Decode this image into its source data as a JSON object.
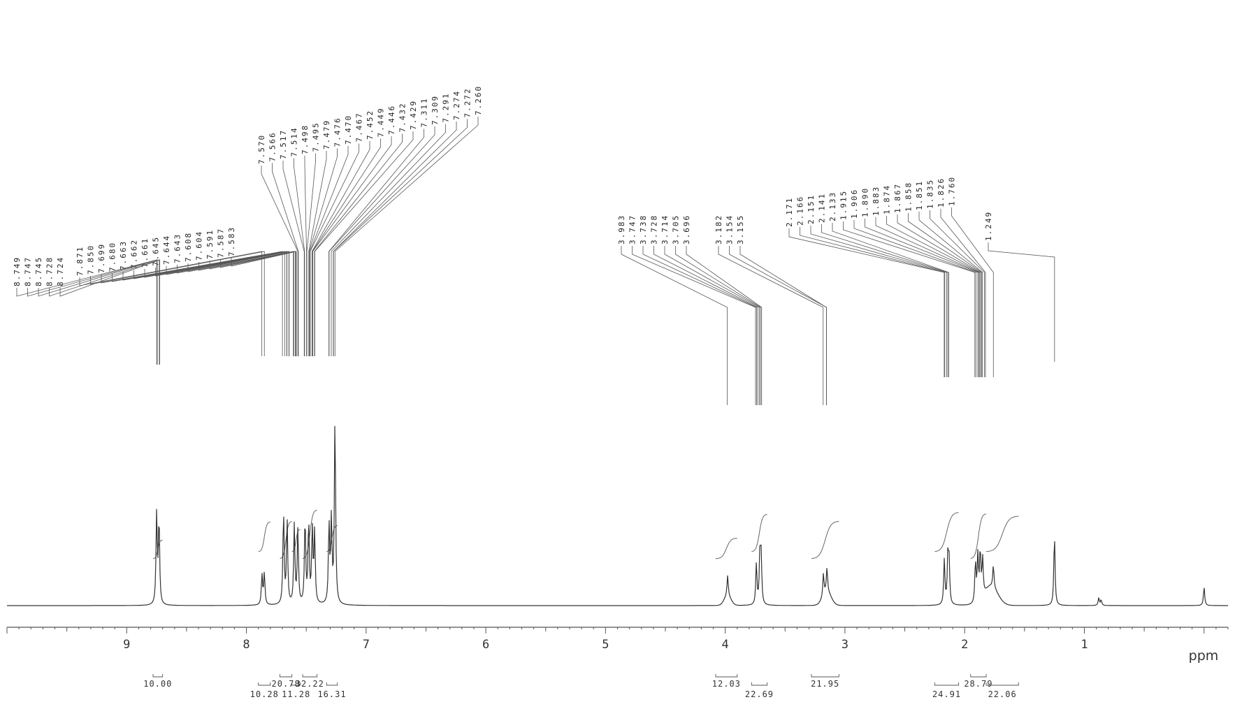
{
  "chart_data": {
    "type": "line",
    "title": "",
    "xlabel": "ppm",
    "ylabel": "",
    "xlim": [
      10.0,
      -0.2
    ],
    "x_reversed": true,
    "x_ticks": [
      "9",
      "8",
      "7",
      "6",
      "5",
      "4",
      "3",
      "2",
      "1"
    ],
    "x_tick_values": [
      9,
      8,
      7,
      6,
      5,
      4,
      3,
      2,
      1
    ],
    "grid": false,
    "series": [
      {
        "values": [
          {
            "ppm": 8.75,
            "height": 0.48
          },
          {
            "ppm": 8.73,
            "height": 0.46
          },
          {
            "ppm": 7.87,
            "height": 0.16
          },
          {
            "ppm": 7.85,
            "height": 0.17
          },
          {
            "ppm": 7.69,
            "height": 0.5
          },
          {
            "ppm": 7.66,
            "height": 0.45
          },
          {
            "ppm": 7.6,
            "height": 0.42
          },
          {
            "ppm": 7.57,
            "height": 0.4
          },
          {
            "ppm": 7.51,
            "height": 0.46
          },
          {
            "ppm": 7.48,
            "height": 0.44
          },
          {
            "ppm": 7.45,
            "height": 0.4
          },
          {
            "ppm": 7.43,
            "height": 0.38
          },
          {
            "ppm": 7.31,
            "height": 0.42
          },
          {
            "ppm": 7.29,
            "height": 0.44
          },
          {
            "ppm": 7.26,
            "height": 1.0
          },
          {
            "ppm": 3.98,
            "height": 0.11
          },
          {
            "ppm": 3.74,
            "height": 0.22
          },
          {
            "ppm": 3.71,
            "height": 0.28
          },
          {
            "ppm": 3.7,
            "height": 0.24
          },
          {
            "ppm": 3.18,
            "height": 0.12
          },
          {
            "ppm": 3.15,
            "height": 0.13
          },
          {
            "ppm": 2.17,
            "height": 0.24
          },
          {
            "ppm": 2.14,
            "height": 0.26
          },
          {
            "ppm": 2.13,
            "height": 0.22
          },
          {
            "ppm": 1.91,
            "height": 0.22
          },
          {
            "ppm": 1.89,
            "height": 0.24
          },
          {
            "ppm": 1.87,
            "height": 0.26
          },
          {
            "ppm": 1.85,
            "height": 0.2
          },
          {
            "ppm": 1.76,
            "height": 0.12
          },
          {
            "ppm": 1.25,
            "height": 0.38
          },
          {
            "ppm": 0.88,
            "height": 0.04
          },
          {
            "ppm": 0.86,
            "height": 0.03
          },
          {
            "ppm": 0.0,
            "height": 0.1
          }
        ]
      }
    ],
    "peak_groups": [
      {
        "labels": [
          "8.749",
          "8.747",
          "8.745",
          "8.728",
          "8.724"
        ],
        "ppm": [
          8.749,
          8.747,
          8.745,
          8.728,
          8.724
        ]
      },
      {
        "labels": [
          "7.871",
          "7.850",
          "7.699",
          "7.680",
          "7.663",
          "7.662",
          "7.661",
          "7.645",
          "7.644",
          "7.643",
          "7.608",
          "7.604",
          "7.591",
          "7.587",
          "7.583"
        ],
        "ppm": [
          7.871,
          7.85,
          7.699,
          7.68,
          7.663,
          7.662,
          7.661,
          7.645,
          7.644,
          7.643,
          7.608,
          7.604,
          7.591,
          7.587,
          7.583
        ]
      },
      {
        "labels": [
          "7.570",
          "7.566",
          "7.517",
          "7.514",
          "7.498",
          "7.495",
          "7.479",
          "7.476",
          "7.470",
          "7.467",
          "7.452",
          "7.449",
          "7.446",
          "7.432",
          "7.429",
          "7.311",
          "7.309",
          "7.291",
          "7.274",
          "7.272",
          "7.260"
        ],
        "ppm": [
          7.57,
          7.566,
          7.517,
          7.514,
          7.498,
          7.495,
          7.479,
          7.476,
          7.47,
          7.467,
          7.452,
          7.449,
          7.446,
          7.432,
          7.429,
          7.311,
          7.309,
          7.291,
          7.274,
          7.272,
          7.26
        ]
      },
      {
        "labels": [
          "3.983",
          "3.747",
          "3.738",
          "3.728",
          "3.714",
          "3.705",
          "3.696"
        ],
        "ppm": [
          3.983,
          3.747,
          3.738,
          3.728,
          3.714,
          3.705,
          3.696
        ]
      },
      {
        "labels": [
          "3.182",
          "3.154",
          "3.155"
        ],
        "ppm": [
          3.182,
          3.154,
          3.155
        ]
      },
      {
        "labels": [
          "2.171",
          "2.166",
          "2.151",
          "2.141",
          "2.133",
          "1.915",
          "1.906",
          "1.890",
          "1.883",
          "1.874",
          "1.867",
          "1.858",
          "1.851",
          "1.835",
          "1.826",
          "1.760"
        ],
        "ppm": [
          2.171,
          2.166,
          2.151,
          2.141,
          2.133,
          1.915,
          1.906,
          1.89,
          1.883,
          1.874,
          1.867,
          1.858,
          1.851,
          1.835,
          1.826,
          1.76
        ]
      },
      {
        "labels": [
          "1.249"
        ],
        "ppm": [
          1.249
        ]
      }
    ],
    "integrations": [
      {
        "label": "10.00",
        "from": 8.78,
        "to": 8.7,
        "row": 1,
        "step": 0.1
      },
      {
        "label": "10.28",
        "from": 7.9,
        "to": 7.8,
        "row": 2,
        "step": 0.16
      },
      {
        "label": "20.78",
        "from": 7.72,
        "to": 7.62,
        "row": 1,
        "step": 0.2
      },
      {
        "label": "11.28",
        "from": 7.62,
        "to": 7.55,
        "row": 2,
        "step": 0.12
      },
      {
        "label": "32.22",
        "from": 7.53,
        "to": 7.41,
        "row": 1,
        "step": 0.26
      },
      {
        "label": "16.31",
        "from": 7.33,
        "to": 7.24,
        "row": 2,
        "step": 0.14
      },
      {
        "label": "12.03",
        "from": 4.08,
        "to": 3.9,
        "row": 1,
        "step": 0.11
      },
      {
        "label": "22.69",
        "from": 3.78,
        "to": 3.65,
        "row": 2,
        "step": 0.2
      },
      {
        "label": "21.95",
        "from": 3.28,
        "to": 3.05,
        "row": 1,
        "step": 0.2
      },
      {
        "label": "24.91",
        "from": 2.25,
        "to": 2.05,
        "row": 2,
        "step": 0.21
      },
      {
        "label": "28.79",
        "from": 1.95,
        "to": 1.82,
        "row": 1,
        "step": 0.24
      },
      {
        "label": "22.06",
        "from": 1.82,
        "to": 1.55,
        "row": 2,
        "step": 0.19
      }
    ]
  }
}
